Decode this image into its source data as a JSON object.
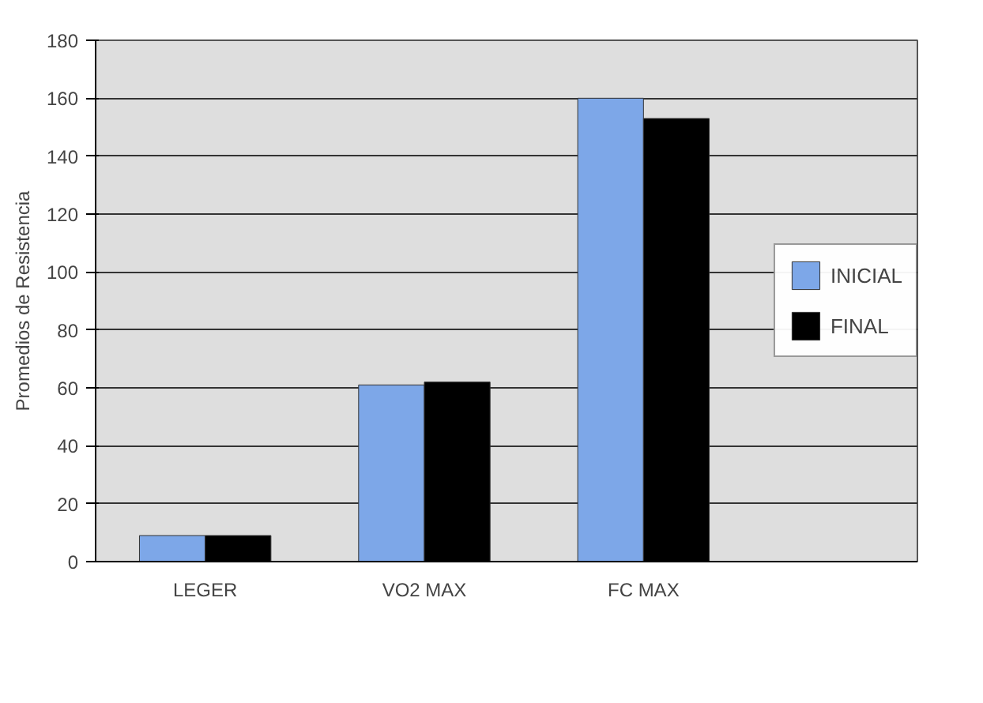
{
  "chart_data": {
    "type": "bar",
    "ylabel": "Promedios de Resistencia",
    "categories": [
      "LEGER",
      "VO2 MAX",
      "FC MAX"
    ],
    "series": [
      {
        "name": "INICIAL",
        "color": "#7da7e8",
        "values": [
          9,
          61,
          160
        ]
      },
      {
        "name": "FINAL",
        "color": "#000000",
        "values": [
          9,
          62,
          153
        ]
      }
    ],
    "ylim": [
      0,
      180
    ],
    "yticks": [
      0,
      20,
      40,
      60,
      80,
      100,
      120,
      140,
      160,
      180
    ],
    "grid": "y",
    "legend": "right"
  }
}
